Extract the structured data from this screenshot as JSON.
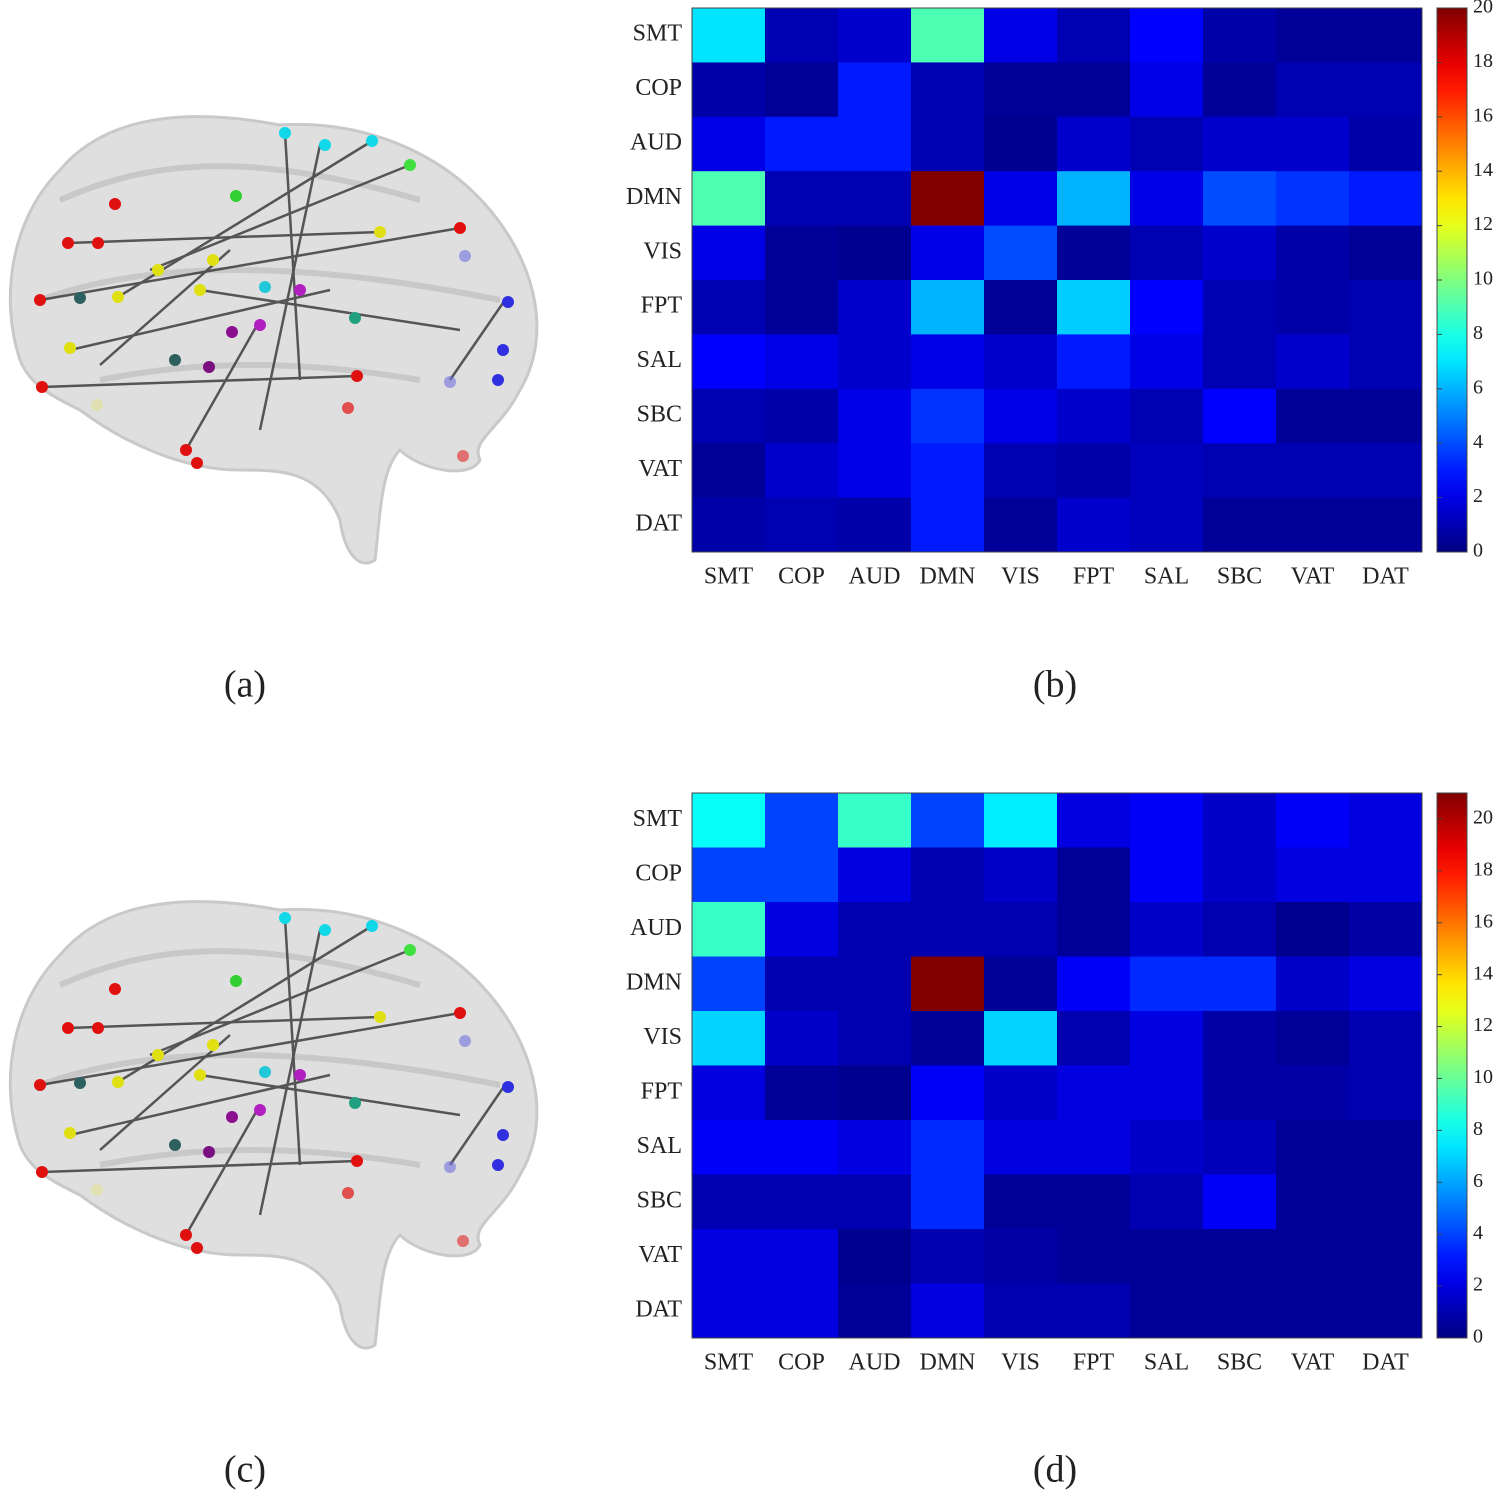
{
  "panel_labels": [
    "(a)",
    "(b)",
    "(c)",
    "(d)"
  ],
  "chart_data": [
    {
      "type": "heatmap",
      "colormap": "jet",
      "x": [
        "SMT",
        "COP",
        "AUD",
        "DMN",
        "VIS",
        "FPT",
        "SAL",
        "SBC",
        "VAT",
        "DAT"
      ],
      "y": [
        "SMT",
        "COP",
        "AUD",
        "DMN",
        "VIS",
        "FPT",
        "SAL",
        "SBC",
        "VAT",
        "DAT"
      ],
      "z": [
        [
          7,
          1,
          1.5,
          9,
          2,
          1,
          2.5,
          0.8,
          0.5,
          0.5
        ],
        [
          0.8,
          0.5,
          3,
          1,
          0.5,
          0.5,
          2,
          0.5,
          1,
          1
        ],
        [
          2,
          3,
          3,
          1,
          0.3,
          1.5,
          1,
          1.5,
          1.5,
          0.8
        ],
        [
          9,
          1,
          1,
          20,
          2,
          6,
          2,
          4,
          3.5,
          3
        ],
        [
          2,
          0.5,
          0.3,
          2,
          4,
          0.5,
          1,
          1.5,
          0.8,
          0.5
        ],
        [
          1,
          0.5,
          1.5,
          6,
          0.5,
          6.5,
          2.5,
          1,
          0.8,
          1
        ],
        [
          2.5,
          2,
          1.5,
          2,
          1.5,
          3,
          2,
          1,
          1.5,
          1
        ],
        [
          1,
          0.8,
          2,
          3.5,
          2,
          1.5,
          1,
          2.5,
          0.5,
          0.5
        ],
        [
          0.5,
          1.5,
          2,
          3,
          1,
          0.8,
          1.2,
          1,
          1,
          1
        ],
        [
          0.8,
          1,
          0.8,
          3,
          0.5,
          1.5,
          1.2,
          0.5,
          0.5,
          0.5
        ]
      ],
      "clim": [
        0,
        20
      ],
      "cticks": [
        0,
        2,
        4,
        6,
        8,
        10,
        12,
        14,
        16,
        18,
        20
      ]
    },
    {
      "type": "heatmap",
      "colormap": "jet",
      "x": [
        "SMT",
        "COP",
        "AUD",
        "DMN",
        "VIS",
        "FPT",
        "SAL",
        "SBC",
        "VAT",
        "DAT"
      ],
      "y": [
        "SMT",
        "COP",
        "AUD",
        "DMN",
        "VIS",
        "FPT",
        "SAL",
        "SBC",
        "VAT",
        "DAT"
      ],
      "z": [
        [
          8,
          4,
          9,
          4,
          7.5,
          2,
          2.5,
          1.5,
          2.5,
          2
        ],
        [
          4,
          4,
          2,
          1,
          1.5,
          0.5,
          2.5,
          1.5,
          2,
          2
        ],
        [
          9,
          2,
          1,
          1,
          1,
          0.5,
          1.5,
          1,
          0.3,
          0.8
        ],
        [
          4,
          1,
          1,
          21,
          0.5,
          2.5,
          3.5,
          3.5,
          1.5,
          2
        ],
        [
          7,
          1.5,
          1,
          0.5,
          7,
          1,
          2,
          0.8,
          0.5,
          1
        ],
        [
          2,
          0.5,
          0.3,
          2.5,
          1.5,
          2,
          2,
          0.8,
          0.8,
          1
        ],
        [
          2.5,
          2.5,
          2,
          3.5,
          2,
          2,
          1.5,
          1.2,
          0.5,
          0.5
        ],
        [
          1,
          1,
          1,
          3.5,
          0.5,
          0.5,
          1,
          2.5,
          0.5,
          0.5
        ],
        [
          2,
          2,
          0.3,
          1,
          0.8,
          0.5,
          0.5,
          0.5,
          0.5,
          0.5
        ],
        [
          2,
          2,
          0.5,
          2,
          1,
          1,
          0.5,
          0.5,
          0.5,
          0.5
        ]
      ],
      "clim": [
        0,
        21
      ],
      "cticks": [
        0,
        2,
        4,
        6,
        8,
        10,
        12,
        14,
        16,
        18,
        20
      ]
    }
  ]
}
